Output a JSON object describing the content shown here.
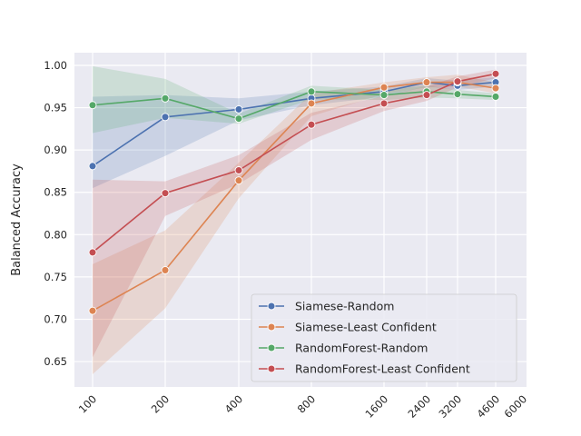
{
  "chart_data": {
    "type": "line",
    "title": "",
    "xlabel": "",
    "ylabel": "Balanced Accuracy",
    "x": [
      100,
      200,
      400,
      800,
      1600,
      2400,
      3200,
      4600
    ],
    "x_tick_labels": [
      "100",
      "200",
      "400",
      "800",
      "1600",
      "2400",
      "3200",
      "4600",
      "6000"
    ],
    "y_ticks": [
      0.65,
      0.7,
      0.75,
      0.8,
      0.85,
      0.9,
      0.95,
      1.0
    ],
    "y_tick_labels": [
      "0.65",
      "0.70",
      "0.75",
      "0.80",
      "0.85",
      "0.90",
      "0.95",
      "1.00"
    ],
    "ylim": [
      0.62,
      1.015
    ],
    "grid": true,
    "legend_position": "lower-right",
    "series": [
      {
        "name": "Siamese-Random",
        "color": "#4c72b0",
        "values": [
          0.881,
          0.939,
          0.948,
          0.961,
          0.969,
          0.98,
          0.976,
          0.98
        ],
        "lower": [
          0.855,
          0.893,
          0.935,
          0.953,
          0.963,
          0.975,
          0.971,
          0.975
        ],
        "upper": [
          0.963,
          0.965,
          0.961,
          0.969,
          0.975,
          0.985,
          0.982,
          0.986
        ]
      },
      {
        "name": "Siamese-Least Confident",
        "color": "#dd8452",
        "values": [
          0.71,
          0.758,
          0.864,
          0.955,
          0.974,
          0.98,
          0.98,
          0.973
        ],
        "lower": [
          0.635,
          0.713,
          0.843,
          0.94,
          0.966,
          0.974,
          0.975,
          0.967
        ],
        "upper": [
          0.765,
          0.805,
          0.885,
          0.967,
          0.98,
          0.986,
          0.989,
          0.98
        ]
      },
      {
        "name": "RandomForest-Random",
        "color": "#55a868",
        "values": [
          0.953,
          0.961,
          0.937,
          0.969,
          0.965,
          0.969,
          0.966,
          0.963
        ],
        "lower": [
          0.92,
          0.938,
          0.931,
          0.96,
          0.959,
          0.962,
          0.961,
          0.959
        ],
        "upper": [
          0.999,
          0.984,
          0.943,
          0.976,
          0.971,
          0.976,
          0.971,
          0.967
        ]
      },
      {
        "name": "RandomForest-Least Confident",
        "color": "#c44e52",
        "values": [
          0.779,
          0.849,
          0.876,
          0.93,
          0.955,
          0.965,
          0.981,
          0.99
        ],
        "lower": [
          0.655,
          0.822,
          0.86,
          0.912,
          0.946,
          0.958,
          0.974,
          0.985
        ],
        "upper": [
          0.865,
          0.863,
          0.894,
          0.944,
          0.964,
          0.975,
          0.987,
          0.995
        ]
      }
    ]
  }
}
